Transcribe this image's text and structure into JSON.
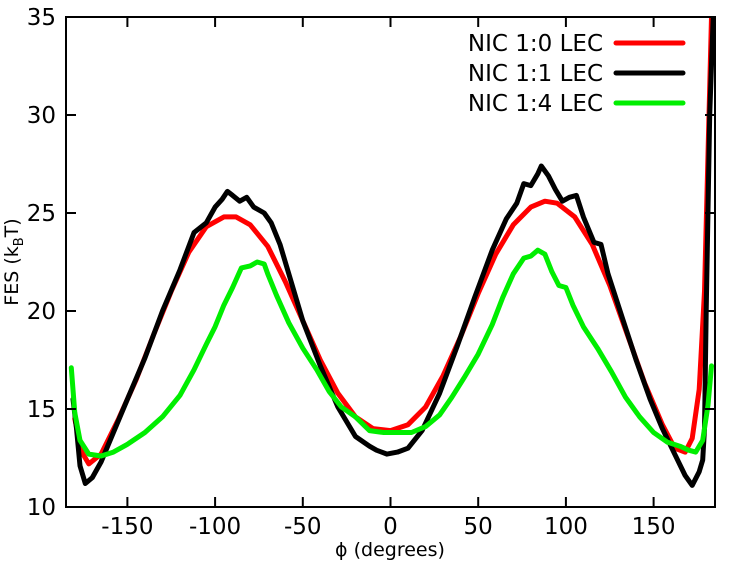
{
  "chart_data": {
    "type": "line",
    "xlabel": "ϕ (degrees)",
    "ylabel_main": "FES (k",
    "ylabel_sub": "B",
    "ylabel_end": "T)",
    "xlim": [
      -185,
      185
    ],
    "ylim": [
      10,
      35
    ],
    "xticks": [
      -150,
      -100,
      -50,
      0,
      50,
      100,
      150
    ],
    "yticks": [
      10,
      15,
      20,
      25,
      30,
      35
    ],
    "xtick_labels": [
      "-150",
      "-100",
      "-50",
      "0",
      "50",
      "100",
      "150"
    ],
    "ytick_labels": [
      "10",
      "15",
      "20",
      "25",
      "30",
      "35"
    ],
    "grid": false,
    "legend_position": "top-right",
    "series": [
      {
        "name": "NIC 1:0 LEC",
        "color": "#ff0000",
        "points": [
          [
            -180,
            14.5
          ],
          [
            -176,
            12.8
          ],
          [
            -172,
            12.2
          ],
          [
            -165,
            12.7
          ],
          [
            -155,
            14.5
          ],
          [
            -145,
            16.5
          ],
          [
            -135,
            18.8
          ],
          [
            -125,
            21.0
          ],
          [
            -115,
            23.0
          ],
          [
            -105,
            24.3
          ],
          [
            -95,
            24.8
          ],
          [
            -88,
            24.8
          ],
          [
            -80,
            24.4
          ],
          [
            -70,
            23.3
          ],
          [
            -60,
            21.5
          ],
          [
            -50,
            19.5
          ],
          [
            -40,
            17.5
          ],
          [
            -30,
            15.8
          ],
          [
            -20,
            14.6
          ],
          [
            -10,
            14.0
          ],
          [
            0,
            13.9
          ],
          [
            10,
            14.2
          ],
          [
            20,
            15.1
          ],
          [
            30,
            16.7
          ],
          [
            40,
            18.7
          ],
          [
            50,
            20.9
          ],
          [
            60,
            22.9
          ],
          [
            70,
            24.4
          ],
          [
            80,
            25.3
          ],
          [
            88,
            25.6
          ],
          [
            95,
            25.5
          ],
          [
            105,
            24.8
          ],
          [
            115,
            23.4
          ],
          [
            125,
            21.3
          ],
          [
            135,
            18.8
          ],
          [
            145,
            16.3
          ],
          [
            155,
            14.2
          ],
          [
            162,
            13.0
          ],
          [
            168,
            12.8
          ],
          [
            172,
            13.5
          ],
          [
            176,
            16.0
          ],
          [
            179,
            21.0
          ],
          [
            181,
            28.0
          ],
          [
            183,
            35.0
          ]
        ]
      },
      {
        "name": "NIC 1:1 LEC",
        "color": "#000000",
        "points": [
          [
            -181,
            15.5
          ],
          [
            -179,
            14.0
          ],
          [
            -177,
            12.1
          ],
          [
            -174,
            11.2
          ],
          [
            -170,
            11.5
          ],
          [
            -165,
            12.3
          ],
          [
            -158,
            13.8
          ],
          [
            -150,
            15.5
          ],
          [
            -140,
            17.6
          ],
          [
            -130,
            20.0
          ],
          [
            -120,
            22.1
          ],
          [
            -112,
            24.0
          ],
          [
            -105,
            24.5
          ],
          [
            -100,
            25.3
          ],
          [
            -96,
            25.7
          ],
          [
            -93,
            26.1
          ],
          [
            -90,
            25.9
          ],
          [
            -86,
            25.6
          ],
          [
            -82,
            25.8
          ],
          [
            -78,
            25.3
          ],
          [
            -72,
            25.0
          ],
          [
            -68,
            24.5
          ],
          [
            -63,
            23.4
          ],
          [
            -58,
            21.9
          ],
          [
            -50,
            19.5
          ],
          [
            -40,
            17.2
          ],
          [
            -30,
            15.1
          ],
          [
            -20,
            13.6
          ],
          [
            -12,
            13.1
          ],
          [
            -8,
            12.9
          ],
          [
            -2,
            12.7
          ],
          [
            4,
            12.8
          ],
          [
            10,
            13.0
          ],
          [
            18,
            13.9
          ],
          [
            28,
            15.8
          ],
          [
            38,
            18.2
          ],
          [
            48,
            20.7
          ],
          [
            58,
            23.1
          ],
          [
            66,
            24.7
          ],
          [
            72,
            25.5
          ],
          [
            76,
            26.5
          ],
          [
            80,
            26.4
          ],
          [
            84,
            27.0
          ],
          [
            86,
            27.4
          ],
          [
            90,
            26.9
          ],
          [
            94,
            26.2
          ],
          [
            98,
            25.6
          ],
          [
            102,
            25.8
          ],
          [
            106,
            25.9
          ],
          [
            110,
            24.8
          ],
          [
            116,
            23.5
          ],
          [
            120,
            23.4
          ],
          [
            124,
            21.9
          ],
          [
            132,
            19.7
          ],
          [
            140,
            17.5
          ],
          [
            148,
            15.5
          ],
          [
            155,
            14.0
          ],
          [
            162,
            12.7
          ],
          [
            168,
            11.6
          ],
          [
            172,
            11.1
          ],
          [
            176,
            11.8
          ],
          [
            178,
            12.4
          ],
          [
            179,
            14.0
          ],
          [
            180,
            20.0
          ],
          [
            182,
            30.0
          ],
          [
            184,
            35.0
          ]
        ]
      },
      {
        "name": "NIC 1:4 LEC",
        "color": "#00ee00",
        "points": [
          [
            -182,
            17.1
          ],
          [
            -180,
            14.8
          ],
          [
            -177,
            13.4
          ],
          [
            -172,
            12.7
          ],
          [
            -165,
            12.6
          ],
          [
            -158,
            12.8
          ],
          [
            -150,
            13.2
          ],
          [
            -140,
            13.8
          ],
          [
            -130,
            14.6
          ],
          [
            -120,
            15.7
          ],
          [
            -112,
            17.0
          ],
          [
            -105,
            18.3
          ],
          [
            -100,
            19.2
          ],
          [
            -95,
            20.3
          ],
          [
            -90,
            21.2
          ],
          [
            -85,
            22.2
          ],
          [
            -80,
            22.3
          ],
          [
            -76,
            22.5
          ],
          [
            -72,
            22.4
          ],
          [
            -70,
            21.9
          ],
          [
            -65,
            20.8
          ],
          [
            -58,
            19.4
          ],
          [
            -50,
            18.1
          ],
          [
            -42,
            17.0
          ],
          [
            -35,
            15.9
          ],
          [
            -28,
            15.1
          ],
          [
            -20,
            14.6
          ],
          [
            -12,
            13.9
          ],
          [
            -4,
            13.8
          ],
          [
            4,
            13.8
          ],
          [
            12,
            13.8
          ],
          [
            20,
            14.1
          ],
          [
            28,
            14.7
          ],
          [
            35,
            15.6
          ],
          [
            42,
            16.6
          ],
          [
            50,
            17.8
          ],
          [
            58,
            19.3
          ],
          [
            64,
            20.7
          ],
          [
            70,
            21.9
          ],
          [
            76,
            22.7
          ],
          [
            80,
            22.8
          ],
          [
            84,
            23.1
          ],
          [
            88,
            22.9
          ],
          [
            92,
            22.0
          ],
          [
            96,
            21.3
          ],
          [
            100,
            21.2
          ],
          [
            104,
            20.3
          ],
          [
            110,
            19.2
          ],
          [
            118,
            18.1
          ],
          [
            126,
            16.9
          ],
          [
            134,
            15.6
          ],
          [
            142,
            14.6
          ],
          [
            150,
            13.8
          ],
          [
            158,
            13.3
          ],
          [
            165,
            13.1
          ],
          [
            170,
            12.9
          ],
          [
            174,
            12.8
          ],
          [
            178,
            13.4
          ],
          [
            181,
            15.2
          ],
          [
            183,
            17.2
          ]
        ]
      }
    ]
  }
}
